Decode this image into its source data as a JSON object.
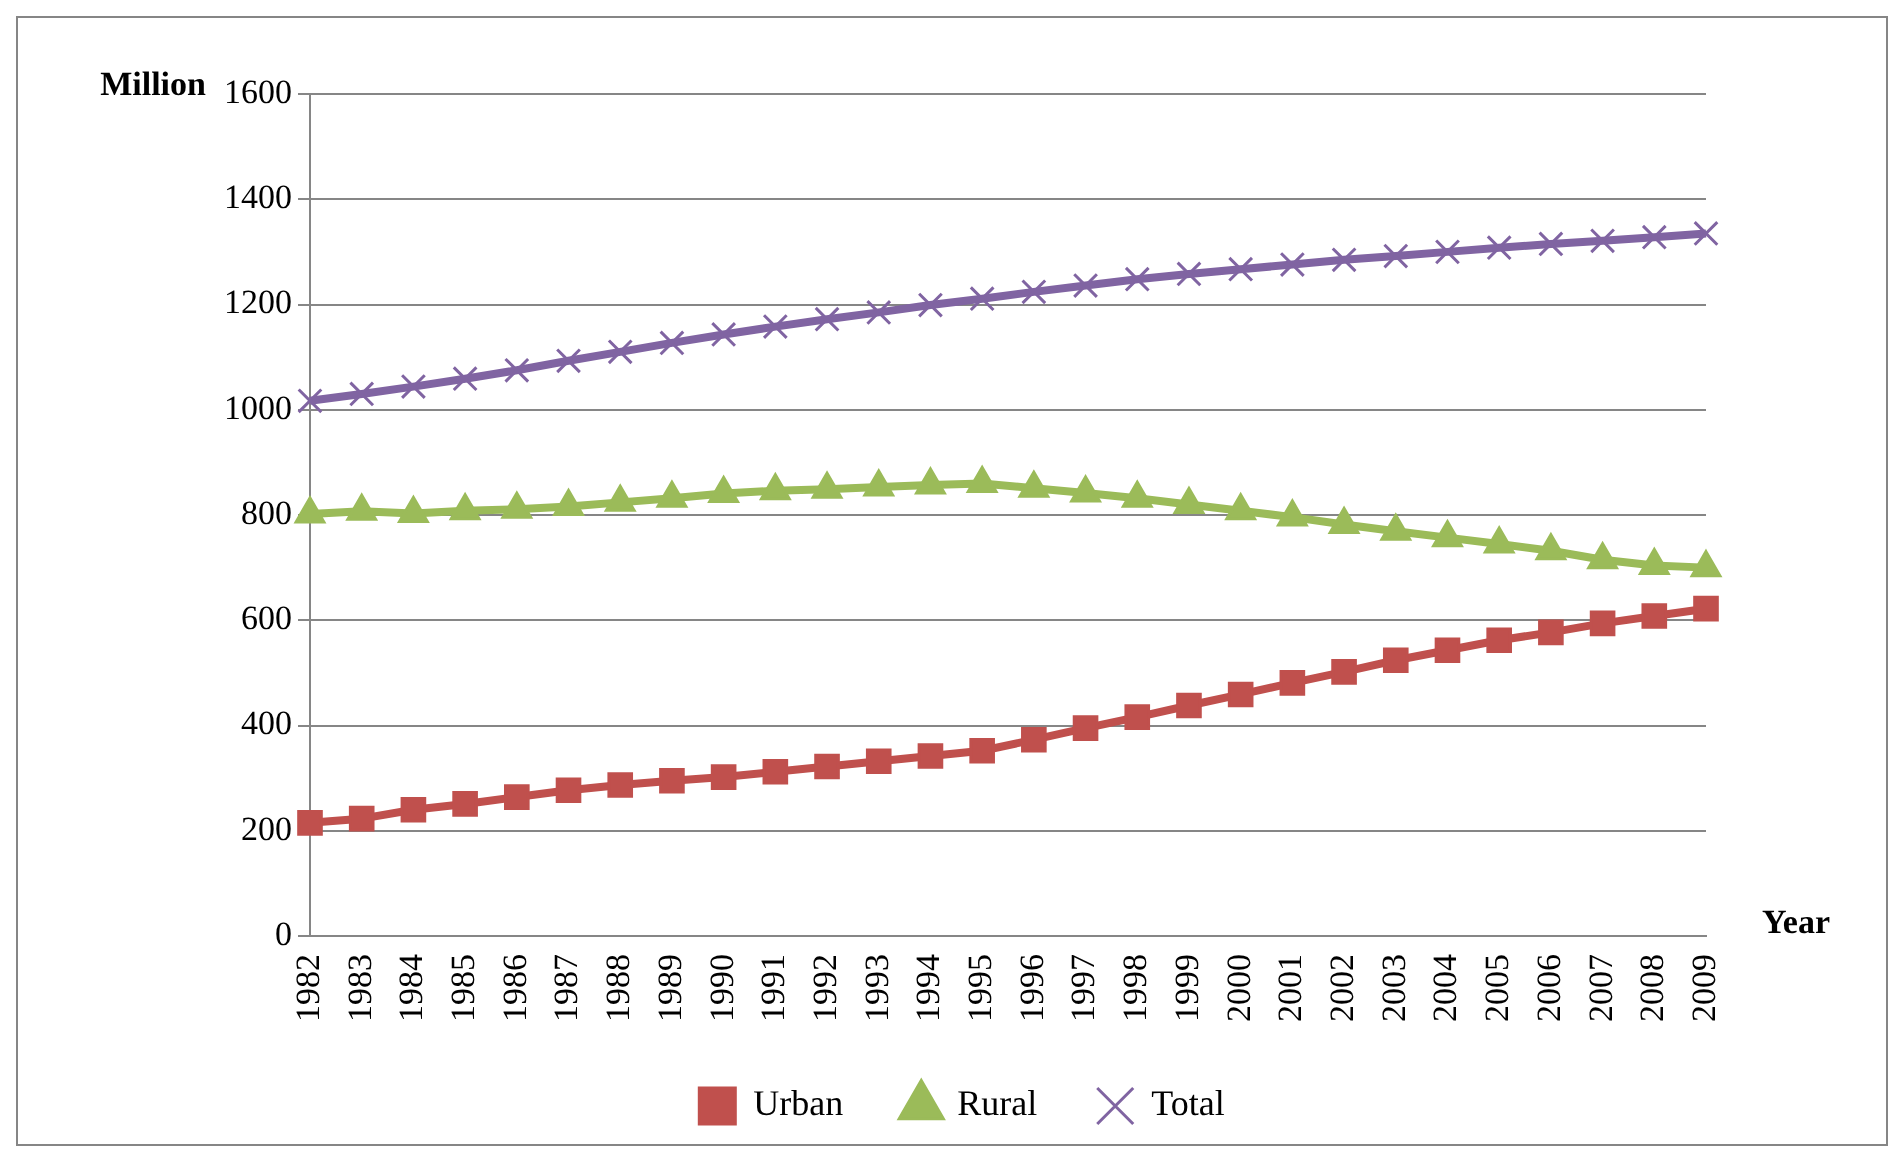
{
  "chart_data": {
    "type": "line",
    "xlabel": "Year",
    "ylabel": "Million",
    "categories": [
      "1982",
      "1983",
      "1984",
      "1985",
      "1986",
      "1987",
      "1988",
      "1989",
      "1990",
      "1991",
      "1992",
      "1993",
      "1994",
      "1995",
      "1996",
      "1997",
      "1998",
      "1999",
      "2000",
      "2001",
      "2002",
      "2003",
      "2004",
      "2005",
      "2006",
      "2007",
      "2008",
      "2009"
    ],
    "series": [
      {
        "name": "Urban",
        "color": "#c0504d",
        "marker": "square",
        "values": [
          215,
          223,
          240,
          251,
          264,
          277,
          287,
          295,
          302,
          312,
          322,
          332,
          342,
          352,
          373,
          395,
          416,
          438,
          459,
          481,
          502,
          524,
          543,
          562,
          577,
          594,
          608,
          622
        ]
      },
      {
        "name": "Rural",
        "color": "#9bbb59",
        "marker": "triangle",
        "values": [
          802,
          807,
          803,
          808,
          811,
          816,
          824,
          832,
          841,
          846,
          849,
          853,
          857,
          860,
          851,
          842,
          832,
          820,
          808,
          796,
          782,
          769,
          757,
          745,
          732,
          715,
          704,
          700
        ]
      },
      {
        "name": "Total",
        "color": "#8064a2",
        "marker": "cross",
        "values": [
          1017,
          1030,
          1044,
          1059,
          1075,
          1093,
          1110,
          1127,
          1143,
          1158,
          1172,
          1185,
          1199,
          1211,
          1224,
          1236,
          1248,
          1258,
          1267,
          1276,
          1285,
          1292,
          1300,
          1308,
          1315,
          1321,
          1328,
          1335
        ]
      }
    ],
    "ylim": [
      0,
      1600
    ],
    "yticks": [
      0,
      200,
      400,
      600,
      800,
      1000,
      1200,
      1400,
      1600
    ],
    "grid": "y",
    "legend": "bottom",
    "line_style": "solid"
  }
}
